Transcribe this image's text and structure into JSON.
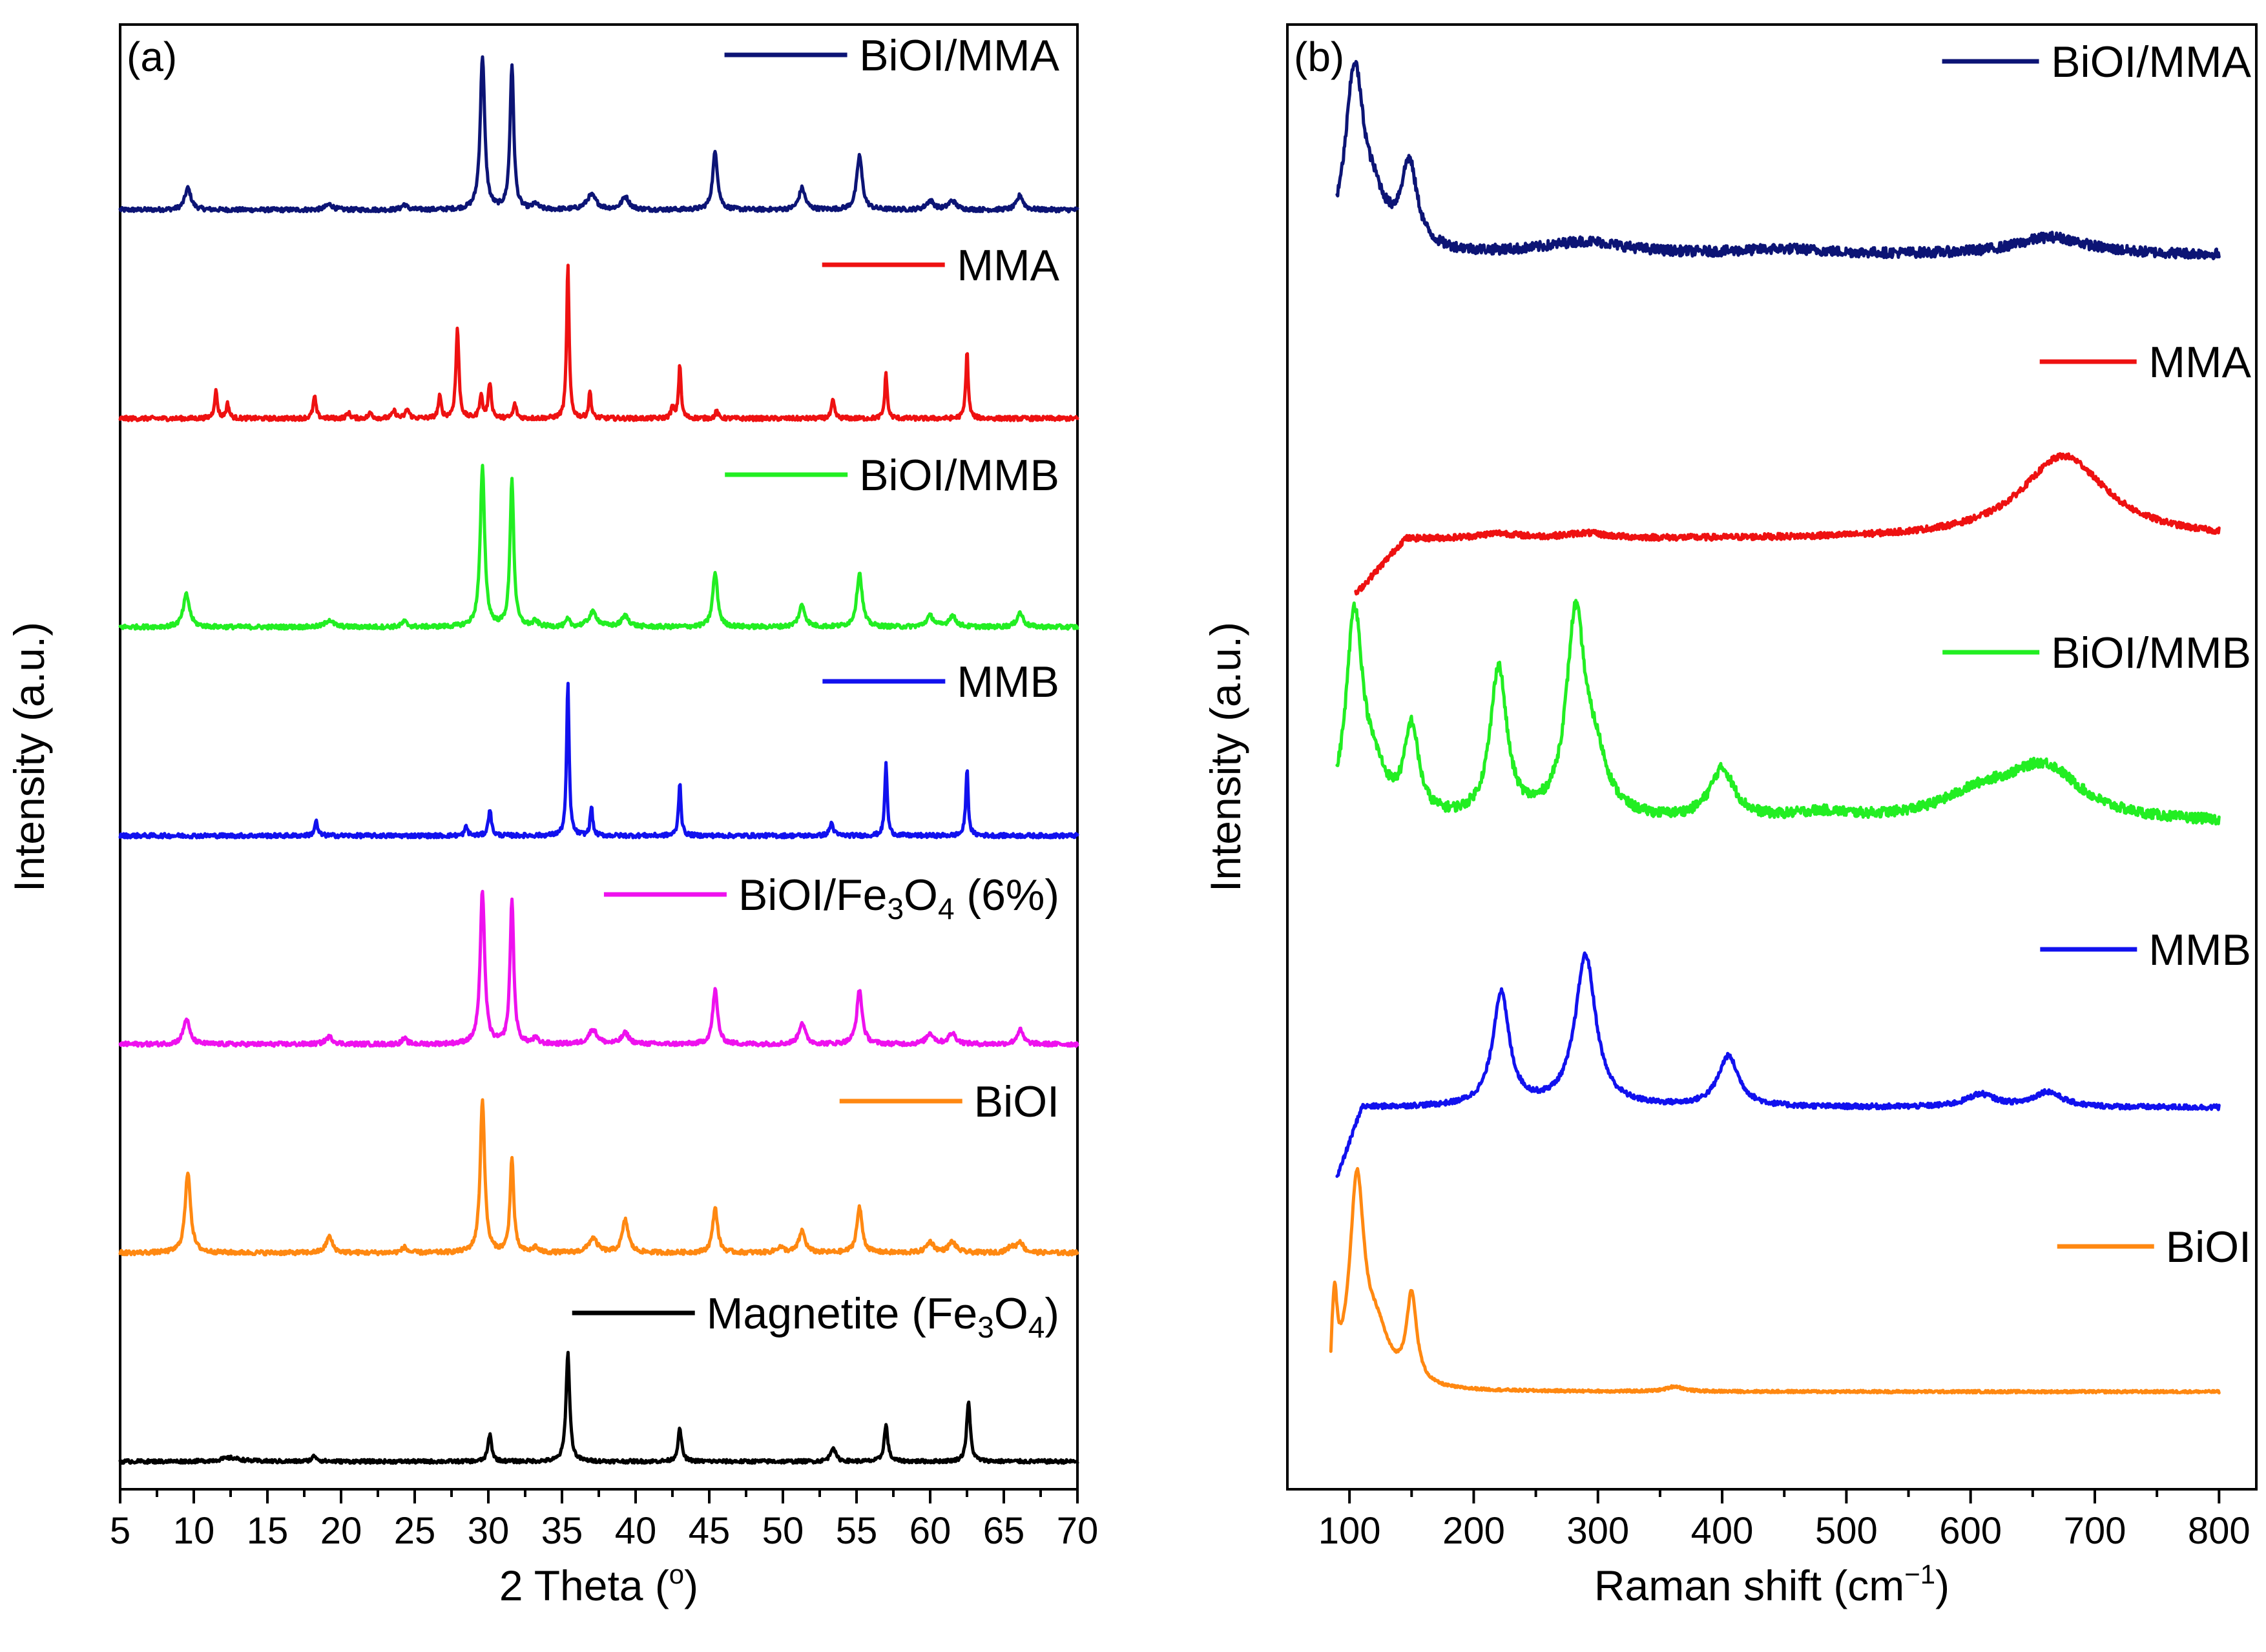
{
  "chart_data": [
    {
      "type": "line",
      "panel_label": "(a)",
      "title": "",
      "xlabel_pre": "2 Theta (",
      "xlabel_sup": "o",
      "xlabel_post": ")",
      "ylabel": "Intensity (a.u.)",
      "xlim": [
        5,
        70
      ],
      "xticks": [
        5,
        10,
        15,
        20,
        25,
        30,
        35,
        40,
        45,
        50,
        55,
        60,
        65,
        70
      ],
      "ylim": [
        0,
        7
      ],
      "grid": false,
      "legend_placement": "right, above each trace",
      "series": [
        {
          "name": "BiOI/MMA",
          "color": "#0c1475",
          "offset": 6,
          "noise": 0.012,
          "peaks": [
            [
              9.6,
              0.12,
              0.25
            ],
            [
              19.2,
              0.03,
              0.3
            ],
            [
              24.3,
              0.03,
              0.2
            ],
            [
              29.6,
              0.85,
              0.18
            ],
            [
              31.6,
              0.8,
              0.15
            ],
            [
              33.2,
              0.03,
              0.2
            ],
            [
              37.0,
              0.08,
              0.4
            ],
            [
              39.3,
              0.07,
              0.3
            ],
            [
              45.4,
              0.32,
              0.2
            ],
            [
              51.3,
              0.12,
              0.25
            ],
            [
              55.2,
              0.3,
              0.22
            ],
            [
              60.0,
              0.05,
              0.3
            ],
            [
              61.5,
              0.05,
              0.3
            ],
            [
              66.1,
              0.08,
              0.25
            ]
          ]
        },
        {
          "name": "MMA",
          "color": "#ee1111",
          "offset": 5,
          "noise": 0.012,
          "peaks": [
            [
              11.5,
              0.15,
              0.12
            ],
            [
              12.3,
              0.08,
              0.12
            ],
            [
              18.2,
              0.12,
              0.12
            ],
            [
              20.5,
              0.03,
              0.15
            ],
            [
              22.0,
              0.03,
              0.15
            ],
            [
              23.6,
              0.04,
              0.15
            ],
            [
              24.5,
              0.05,
              0.15
            ],
            [
              26.7,
              0.12,
              0.12
            ],
            [
              27.9,
              0.5,
              0.12
            ],
            [
              29.5,
              0.13,
              0.12
            ],
            [
              30.1,
              0.2,
              0.12
            ],
            [
              31.8,
              0.08,
              0.12
            ],
            [
              35.4,
              0.85,
              0.1
            ],
            [
              36.9,
              0.15,
              0.1
            ],
            [
              42.5,
              0.06,
              0.12
            ],
            [
              43.0,
              0.3,
              0.1
            ],
            [
              45.5,
              0.04,
              0.12
            ],
            [
              53.4,
              0.1,
              0.12
            ],
            [
              57.0,
              0.25,
              0.1
            ],
            [
              62.5,
              0.37,
              0.1
            ]
          ]
        },
        {
          "name": "BiOI/MMB",
          "color": "#22ee22",
          "offset": 4,
          "noise": 0.012,
          "peaks": [
            [
              9.5,
              0.18,
              0.25
            ],
            [
              19.2,
              0.04,
              0.3
            ],
            [
              24.3,
              0.03,
              0.2
            ],
            [
              29.6,
              0.88,
              0.18
            ],
            [
              31.6,
              0.82,
              0.15
            ],
            [
              33.2,
              0.03,
              0.2
            ],
            [
              35.4,
              0.04,
              0.15
            ],
            [
              37.1,
              0.08,
              0.35
            ],
            [
              39.3,
              0.06,
              0.3
            ],
            [
              45.4,
              0.3,
              0.2
            ],
            [
              51.3,
              0.12,
              0.25
            ],
            [
              55.2,
              0.3,
              0.22
            ],
            [
              60.0,
              0.06,
              0.3
            ],
            [
              61.5,
              0.06,
              0.3
            ],
            [
              66.1,
              0.08,
              0.25
            ]
          ]
        },
        {
          "name": "MMB",
          "color": "#1111ee",
          "offset": 3,
          "noise": 0.012,
          "peaks": [
            [
              18.3,
              0.08,
              0.12
            ],
            [
              28.5,
              0.05,
              0.12
            ],
            [
              30.1,
              0.15,
              0.12
            ],
            [
              35.4,
              0.85,
              0.1
            ],
            [
              37.0,
              0.16,
              0.1
            ],
            [
              43.0,
              0.3,
              0.1
            ],
            [
              53.3,
              0.07,
              0.15
            ],
            [
              57.0,
              0.4,
              0.1
            ],
            [
              62.5,
              0.37,
              0.1
            ]
          ]
        },
        {
          "name": "BiOI/Fe3O4 (6%)",
          "color": "#ee11ee",
          "offset": 2,
          "noise": 0.012,
          "peaks": [
            [
              9.5,
              0.14,
              0.25
            ],
            [
              19.2,
              0.04,
              0.3
            ],
            [
              24.3,
              0.03,
              0.2
            ],
            [
              29.6,
              0.85,
              0.18
            ],
            [
              31.6,
              0.8,
              0.15
            ],
            [
              33.2,
              0.03,
              0.2
            ],
            [
              37.1,
              0.08,
              0.35
            ],
            [
              39.3,
              0.06,
              0.3
            ],
            [
              45.4,
              0.3,
              0.2
            ],
            [
              51.3,
              0.12,
              0.25
            ],
            [
              55.2,
              0.3,
              0.22
            ],
            [
              60.0,
              0.06,
              0.3
            ],
            [
              61.5,
              0.06,
              0.3
            ],
            [
              66.1,
              0.08,
              0.25
            ]
          ]
        },
        {
          "name": "BiOI",
          "color": "#ff8811",
          "offset": 1,
          "noise": 0.012,
          "peaks": [
            [
              9.6,
              0.45,
              0.22
            ],
            [
              19.2,
              0.09,
              0.25
            ],
            [
              24.3,
              0.03,
              0.2
            ],
            [
              29.6,
              0.85,
              0.18
            ],
            [
              31.6,
              0.52,
              0.15
            ],
            [
              33.2,
              0.03,
              0.2
            ],
            [
              37.1,
              0.08,
              0.35
            ],
            [
              39.3,
              0.18,
              0.25
            ],
            [
              45.4,
              0.25,
              0.2
            ],
            [
              49.8,
              0.03,
              0.3
            ],
            [
              51.3,
              0.12,
              0.25
            ],
            [
              55.2,
              0.25,
              0.22
            ],
            [
              60.0,
              0.06,
              0.3
            ],
            [
              61.5,
              0.06,
              0.3
            ],
            [
              65.5,
              0.03,
              0.3
            ],
            [
              66.1,
              0.06,
              0.25
            ]
          ]
        },
        {
          "name": "Magnetite (Fe3O4)",
          "color": "#000000",
          "offset": 0,
          "noise": 0.01,
          "peaks": [
            [
              12.5,
              0.02,
              0.8
            ],
            [
              18.2,
              0.03,
              0.2
            ],
            [
              30.1,
              0.15,
              0.15
            ],
            [
              35.4,
              0.6,
              0.15
            ],
            [
              43.0,
              0.18,
              0.15
            ],
            [
              53.4,
              0.08,
              0.2
            ],
            [
              57.0,
              0.2,
              0.15
            ],
            [
              62.6,
              0.33,
              0.15
            ]
          ]
        }
      ],
      "legend_labels": [
        {
          "name": "BiOI/MMA",
          "color": "#0c1475",
          "parts": [
            [
              "BiOI/MMA",
              ""
            ]
          ]
        },
        {
          "name": "MMA",
          "color": "#ee1111",
          "parts": [
            [
              "MMA",
              ""
            ]
          ]
        },
        {
          "name": "BiOI/MMB",
          "color": "#22ee22",
          "parts": [
            [
              "BiOI/MMB",
              ""
            ]
          ]
        },
        {
          "name": "MMB",
          "color": "#1111ee",
          "parts": [
            [
              "MMB",
              ""
            ]
          ]
        },
        {
          "name": "BiOI/Fe3O4 (6%)",
          "color": "#ee11ee",
          "parts": [
            [
              "BiOI/Fe",
              ""
            ],
            [
              "3",
              "sub"
            ],
            [
              "O",
              ""
            ],
            [
              "4",
              "sub"
            ],
            [
              " (6%)",
              ""
            ]
          ]
        },
        {
          "name": "BiOI",
          "color": "#ff8811",
          "parts": [
            [
              "BiOI",
              ""
            ]
          ]
        },
        {
          "name": "Magnetite (Fe3O4)",
          "color": "#000000",
          "parts": [
            [
              "Magnetite (Fe",
              ""
            ],
            [
              "3",
              "sub"
            ],
            [
              "O",
              ""
            ],
            [
              "4",
              "sub"
            ],
            [
              ")",
              ""
            ]
          ]
        }
      ]
    },
    {
      "type": "line",
      "panel_label": "(b)",
      "title": "",
      "xlabel_pre": "Raman shift (cm",
      "xlabel_sup": "−1",
      "xlabel_post": ")",
      "ylabel": "Intensity (a.u.)",
      "xlim": [
        50,
        830
      ],
      "xticks": [
        100,
        200,
        300,
        400,
        500,
        600,
        700,
        800
      ],
      "ylim": [
        0,
        5
      ],
      "grid": false,
      "legend_placement": "right, above each trace",
      "series": [
        {
          "name": "BiOI/MMA",
          "color": "#0c1475",
          "xmin": 90,
          "offset": 4,
          "noise": 0.02,
          "base": 0.4,
          "peaks": [
            [
              104,
              0.7,
              9
            ],
            [
              120,
              0.15,
              12
            ],
            [
              148,
              0.33,
              8
            ],
            [
              290,
              0.05,
              40
            ],
            [
              450,
              0.02,
              40
            ],
            [
              665,
              0.07,
              35
            ]
          ],
          "ramp": null
        },
        {
          "name": "MMA",
          "color": "#ee1111",
          "xmin": 105,
          "offset": 3,
          "noise": 0.012,
          "base": 0.2,
          "peaks": [
            [
              675,
              0.33,
              42
            ],
            [
              220,
              0.02,
              20
            ],
            [
              290,
              0.02,
              20
            ]
          ],
          "ramp": [
            105,
            145,
            -0.22
          ]
        },
        {
          "name": "BiOI/MMB",
          "color": "#22ee22",
          "xmin": 90,
          "offset": 2,
          "noise": 0.02,
          "base": 0.15,
          "peaks": [
            [
              104,
              0.8,
              8
            ],
            [
              120,
              0.15,
              12
            ],
            [
              150,
              0.35,
              7
            ],
            [
              220,
              0.6,
              8
            ],
            [
              282,
              0.78,
              9
            ],
            [
              298,
              0.2,
              12
            ],
            [
              400,
              0.2,
              12
            ],
            [
              480,
              0.03,
              30
            ],
            [
              610,
              0.1,
              40
            ],
            [
              660,
              0.2,
              35
            ]
          ],
          "ramp": null
        },
        {
          "name": "MMB",
          "color": "#1111ee",
          "xmin": 90,
          "offset": 1,
          "noise": 0.01,
          "base": 0.2,
          "peaks": [
            [
              222,
              0.45,
              8
            ],
            [
              290,
              0.6,
              10
            ],
            [
              405,
              0.2,
              10
            ],
            [
              608,
              0.05,
              14
            ],
            [
              662,
              0.06,
              14
            ]
          ],
          "ramp": [
            90,
            110,
            -0.28
          ]
        },
        {
          "name": "BiOI",
          "color": "#ff8811",
          "xmin": 85,
          "offset": 0,
          "noise": 0.005,
          "base": 0.06,
          "peaks": [
            [
              88,
              0.3,
              2.5
            ],
            [
              106,
              0.8,
              7
            ],
            [
              122,
              0.2,
              12
            ],
            [
              150,
              0.35,
              5
            ],
            [
              362,
              0.02,
              8
            ]
          ],
          "ramp": [
            85,
            86,
            -0.06
          ]
        }
      ],
      "legend_labels": [
        {
          "name": "BiOI/MMA",
          "color": "#0c1475",
          "parts": [
            [
              "BiOI/MMA",
              ""
            ]
          ]
        },
        {
          "name": "MMA",
          "color": "#ee1111",
          "parts": [
            [
              "MMA",
              ""
            ]
          ]
        },
        {
          "name": "BiOI/MMB",
          "color": "#22ee22",
          "parts": [
            [
              "BiOI/MMB",
              ""
            ]
          ]
        },
        {
          "name": "MMB",
          "color": "#1111ee",
          "parts": [
            [
              "MMB",
              ""
            ]
          ]
        },
        {
          "name": "BiOI",
          "color": "#ff8811",
          "parts": [
            [
              "BiOI",
              ""
            ]
          ]
        }
      ]
    }
  ]
}
